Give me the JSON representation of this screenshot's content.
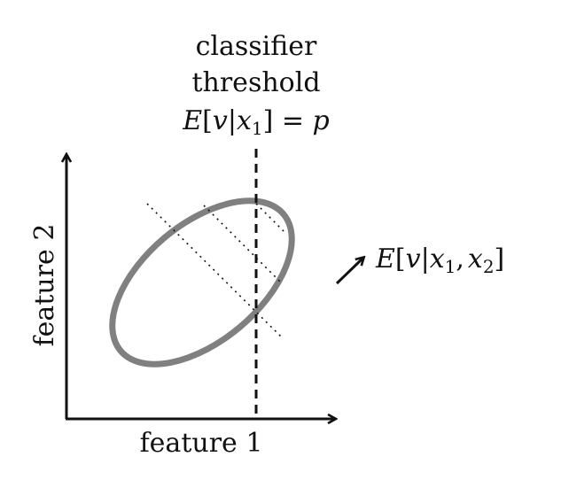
{
  "threshold_label": {
    "line1": "classifier",
    "line2": "threshold",
    "math": {
      "E": "E",
      "open": "[",
      "v": "v",
      "bar": "|",
      "x": "x",
      "sub1": "1",
      "close": "]",
      "eq": " = ",
      "p": "p"
    }
  },
  "axes": {
    "x_label": "feature 1",
    "y_label": "feature 2"
  },
  "annotation": {
    "E": "E",
    "open": "[",
    "v": "v",
    "bar": "|",
    "x1": "x",
    "sub1": "1",
    "comma": ",",
    "x2": "x",
    "sub2": "2",
    "close": "]"
  },
  "colors": {
    "ellipse": "#808080",
    "axes": "#111111",
    "lines": "#111111"
  }
}
